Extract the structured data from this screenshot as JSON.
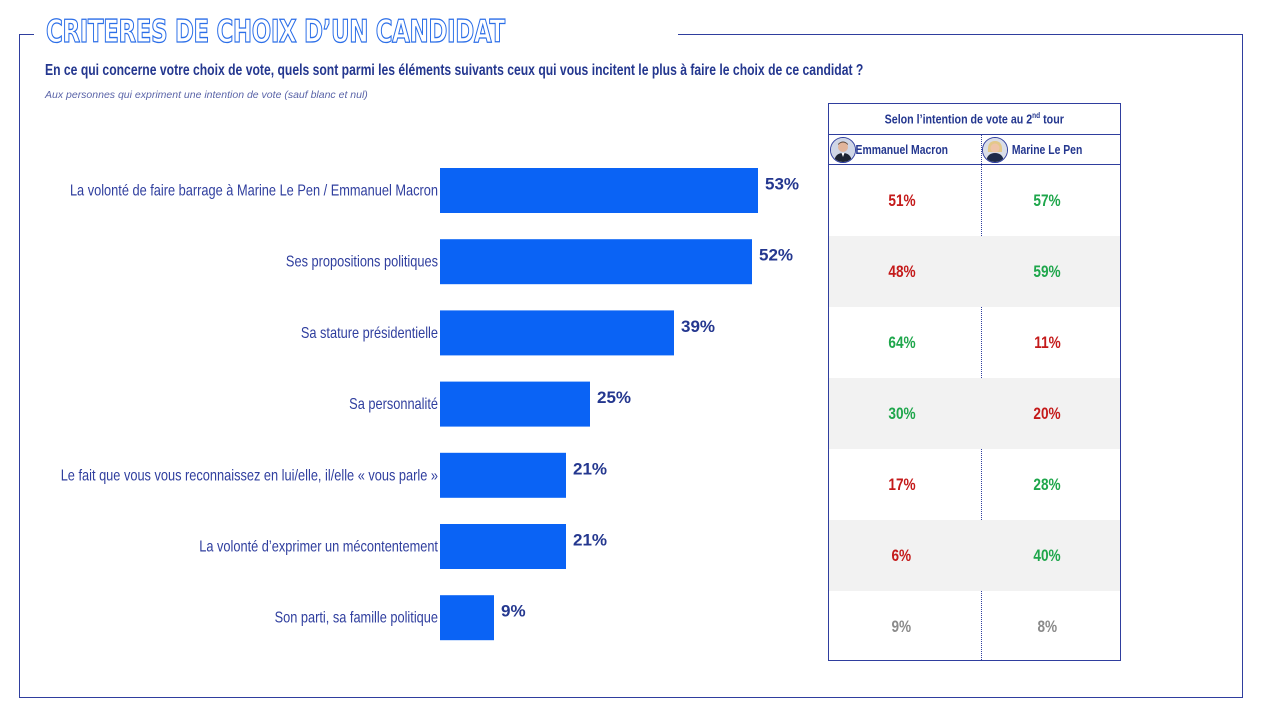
{
  "header": {
    "title": "CRITERES DE CHOIX D’UN CANDIDAT",
    "question": "En ce qui concerne votre choix de vote, quels sont parmi les éléments suivants ceux qui vous incitent le plus à faire le choix de ce candidat ?",
    "note": "Aux personnes qui expriment une intention de vote (sauf blanc et nul)"
  },
  "colors": {
    "bar": "#0a63f5",
    "label": "#2f3e9e",
    "value": "#24378f",
    "high": "#1ea64b",
    "low": "#c41a1a",
    "neutral": "#8a8a8a"
  },
  "chart_data": {
    "type": "bar",
    "orientation": "horizontal",
    "categories": [
      "La volonté de faire barrage à Marine Le Pen / Emmanuel Macron",
      "Ses propositions politiques",
      "Sa stature présidentielle",
      "Sa personnalité",
      "Le fait que vous vous reconnaissez en lui/elle, il/elle « vous parle »",
      "La volonté d’exprimer un mécontentement",
      "Son parti, sa famille politique"
    ],
    "values": [
      53,
      52,
      39,
      25,
      21,
      21,
      9
    ],
    "value_labels": [
      "53%",
      "52%",
      "39%",
      "25%",
      "21%",
      "21%",
      "9%"
    ],
    "xlim": [
      0,
      100
    ]
  },
  "table": {
    "heading_main": "Selon l’intention de vote au 2",
    "heading_sup": "nd",
    "heading_end": " tour",
    "candidates": [
      {
        "name": "Emmanuel Macron",
        "icon": "macron-avatar-icon"
      },
      {
        "name": "Marine Le Pen",
        "icon": "le-pen-avatar-icon"
      }
    ],
    "rows": [
      {
        "macron": "51%",
        "macron_color": "low",
        "lepen": "57%",
        "lepen_color": "high"
      },
      {
        "macron": "48%",
        "macron_color": "low",
        "lepen": "59%",
        "lepen_color": "high"
      },
      {
        "macron": "64%",
        "macron_color": "high",
        "lepen": "11%",
        "lepen_color": "low"
      },
      {
        "macron": "30%",
        "macron_color": "high",
        "lepen": "20%",
        "lepen_color": "low"
      },
      {
        "macron": "17%",
        "macron_color": "low",
        "lepen": "28%",
        "lepen_color": "high"
      },
      {
        "macron": "6%",
        "macron_color": "low",
        "lepen": "40%",
        "lepen_color": "high"
      },
      {
        "macron": "9%",
        "macron_color": "neutral",
        "lepen": "8%",
        "lepen_color": "neutral"
      }
    ]
  }
}
